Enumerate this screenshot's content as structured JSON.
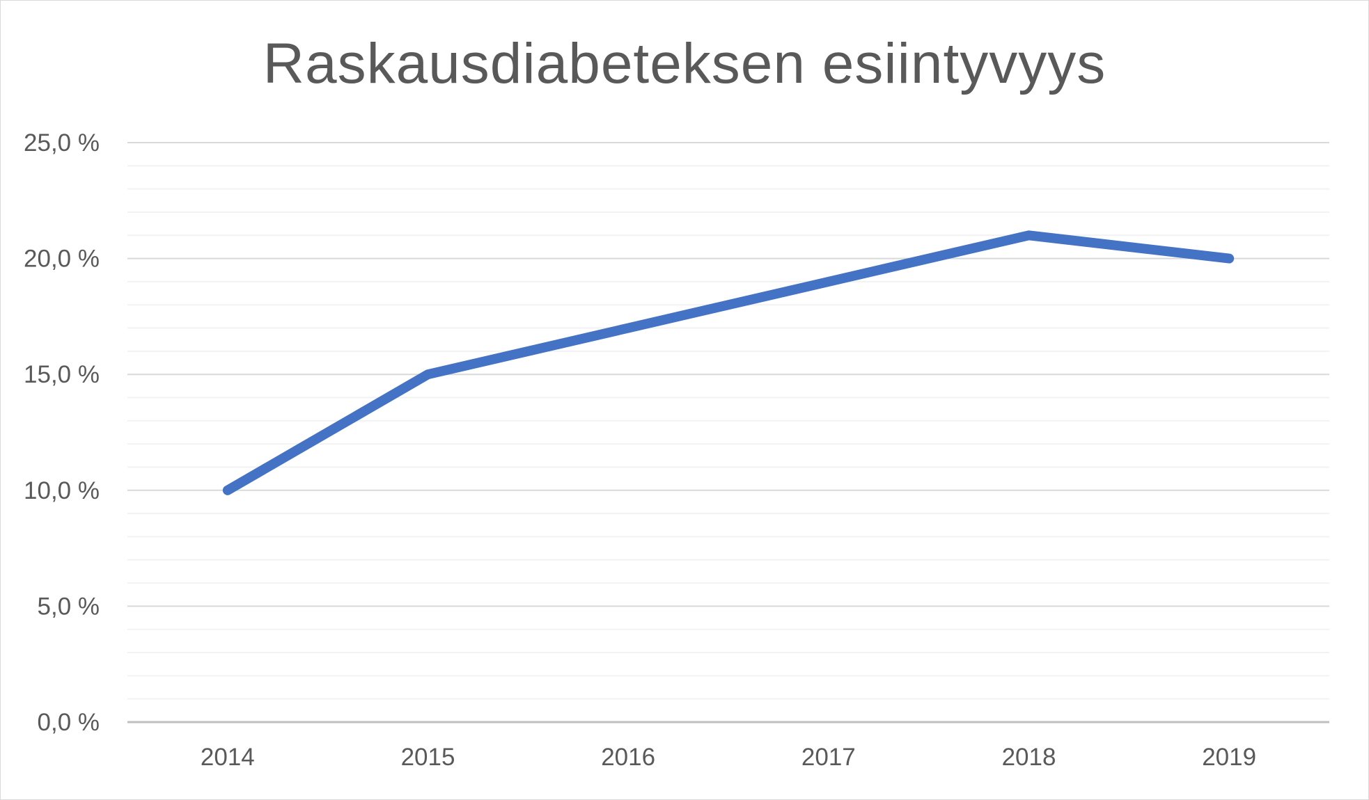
{
  "chart_data": {
    "type": "line",
    "title": "Raskausdiabeteksen esiintyvyys",
    "xlabel": "",
    "ylabel": "",
    "categories": [
      "2014",
      "2015",
      "2016",
      "2017",
      "2018",
      "2019"
    ],
    "series": [
      {
        "values": [
          10.0,
          15.0,
          17.0,
          19.0,
          21.0,
          20.0
        ]
      }
    ],
    "ylim": [
      0,
      25
    ],
    "y_major_step": 5,
    "y_minor_step": 1,
    "y_tick_labels": [
      "0,0 %",
      "5,0 %",
      "10,0 %",
      "15,0 %",
      "20,0 %",
      "25,0 %"
    ],
    "grid": true,
    "legend": "none",
    "colors": {
      "line": "#4472c4",
      "major_grid": "#d9d9d9",
      "minor_grid": "#f2f2f2",
      "axis": "#bfbfbf",
      "text": "#595959"
    }
  }
}
